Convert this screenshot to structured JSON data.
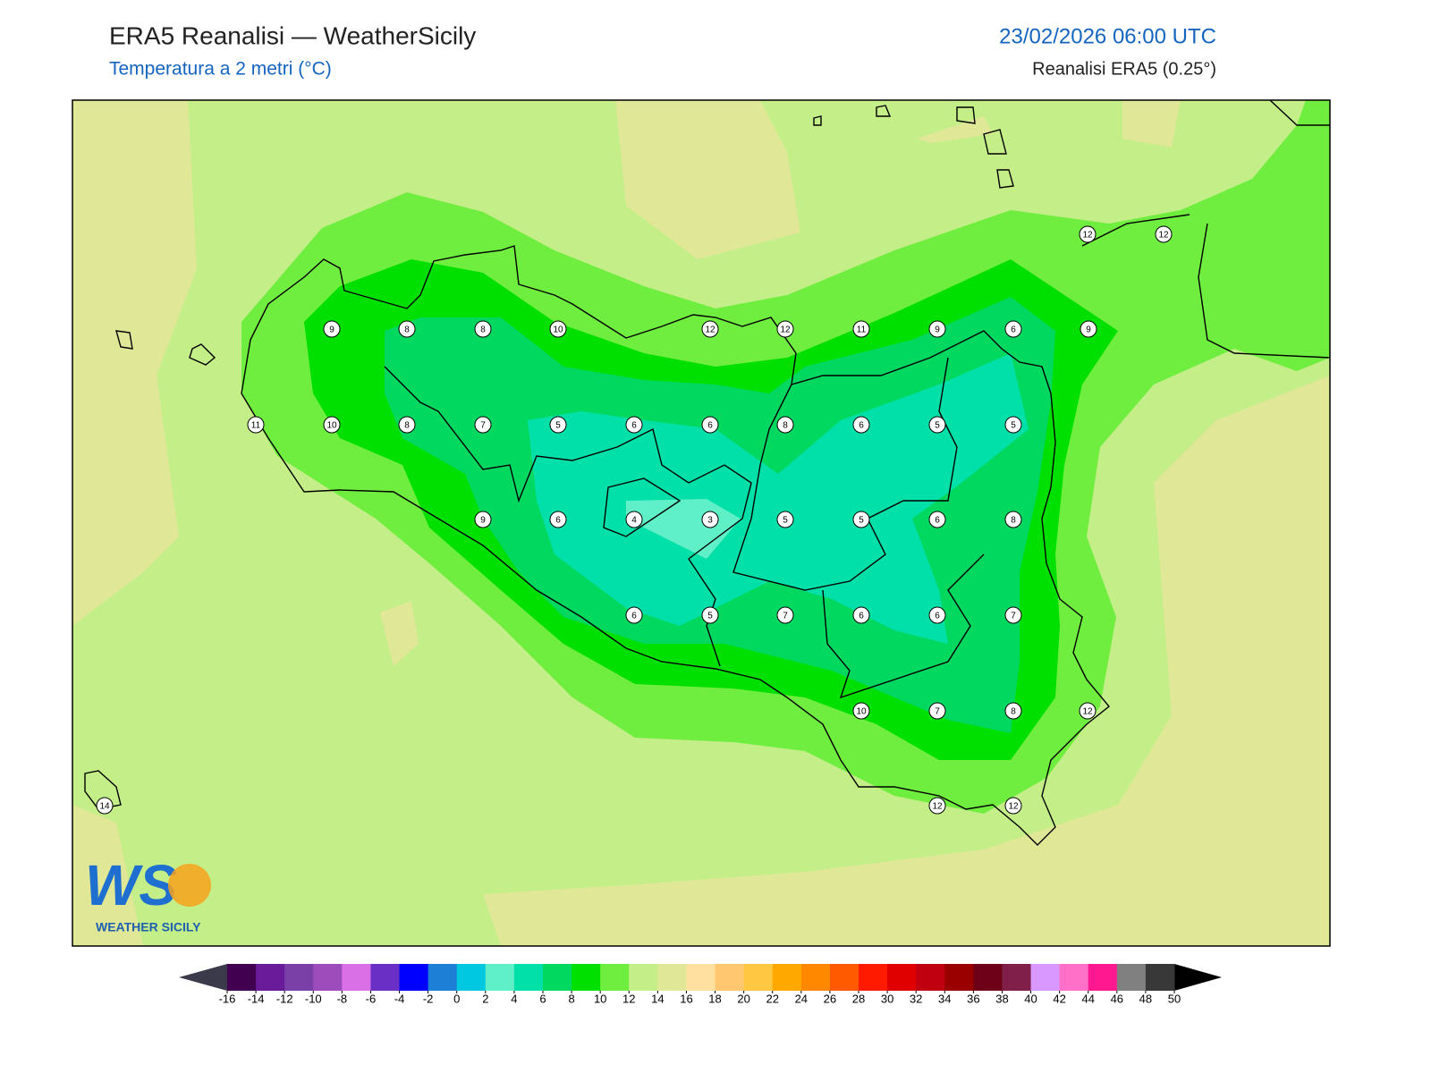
{
  "header": {
    "title": "ERA5 Reanalisi — WeatherSicily",
    "subtitle": "Temperatura a 2 metri (°C)",
    "datetime": "23/02/2026 06:00 UTC",
    "source": "Reanalisi ERA5 (0.25°)"
  },
  "stations": [
    9,
    8,
    8,
    10,
    12,
    12,
    11,
    9,
    6,
    9,
    12,
    12,
    11,
    10,
    8,
    7,
    5,
    6,
    6,
    8,
    6,
    5,
    5,
    9,
    6,
    4,
    3,
    5,
    5,
    6,
    8,
    6,
    5,
    7,
    6,
    6,
    7,
    10,
    7,
    8,
    12,
    14,
    12,
    12
  ],
  "logo": {
    "mark": "WS",
    "name": "WEATHER SICILY"
  },
  "colorbar": {
    "ticks": [
      -16,
      -14,
      -12,
      -10,
      -8,
      -6,
      -4,
      -2,
      0,
      2,
      4,
      6,
      8,
      10,
      12,
      14,
      16,
      18,
      20,
      22,
      24,
      26,
      28,
      30,
      32,
      34,
      36,
      38,
      40,
      42,
      44,
      46,
      48,
      50
    ],
    "colors": [
      "#420050",
      "#6a1b9a",
      "#7b3fa8",
      "#9c4dbb",
      "#da70e6",
      "#6a2fc4",
      "#0000ff",
      "#1e7fd6",
      "#00c8e0",
      "#5ff0c8",
      "#00e0a8",
      "#00d860",
      "#00e000",
      "#70ee40",
      "#c4ee88",
      "#e0e898",
      "#ffe0a0",
      "#ffc870",
      "#ffc840",
      "#ffa800",
      "#ff8800",
      "#ff5a00",
      "#ff1a00",
      "#e00000",
      "#c00010",
      "#9a0000",
      "#6e0018",
      "#802048",
      "#d898ff",
      "#ff70c8",
      "#ff1890",
      "#808080",
      "#383838"
    ],
    "under_color": "#3a3a4a",
    "over_color": "#000000"
  }
}
